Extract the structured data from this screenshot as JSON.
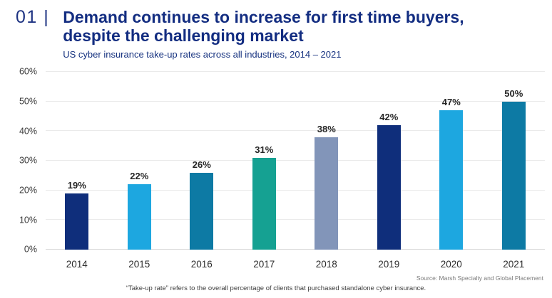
{
  "header": {
    "kicker": "01 |",
    "title_line1": "Demand continues to increase for first time buyers,",
    "title_line2": "despite the challenging market",
    "subtitle": "US cyber insurance take-up rates across all industries, 2014 – 2021"
  },
  "chart_data": {
    "type": "bar",
    "title": "Demand continues to increase for first time buyers, despite the challenging market",
    "subtitle": "US cyber insurance take-up rates across all industries, 2014 – 2021",
    "categories": [
      "2014",
      "2015",
      "2016",
      "2017",
      "2018",
      "2019",
      "2020",
      "2021"
    ],
    "values": [
      19,
      22,
      26,
      31,
      38,
      42,
      47,
      50
    ],
    "value_labels": [
      "19%",
      "22%",
      "26%",
      "31%",
      "38%",
      "42%",
      "47%",
      "50%"
    ],
    "bar_colors": [
      "#0f2e7b",
      "#1da7e0",
      "#0d7aa4",
      "#15a192",
      "#8295b9",
      "#0f2e7b",
      "#1da7e0",
      "#0d7aa4"
    ],
    "xlabel": "",
    "ylabel": "",
    "ylim": [
      0,
      60
    ],
    "yticks": [
      "0%",
      "10%",
      "20%",
      "30%",
      "40%",
      "50%",
      "60%"
    ],
    "grid": true,
    "legend": false
  },
  "footer": {
    "source": "Source: Marsh Specialty and Global Placement",
    "footnote": "“Take-up rate” refers to the overall percentage of clients that purchased standalone cyber insurance."
  },
  "colors": {
    "title_navy": "#132d81",
    "grid": "#eaeaea"
  }
}
